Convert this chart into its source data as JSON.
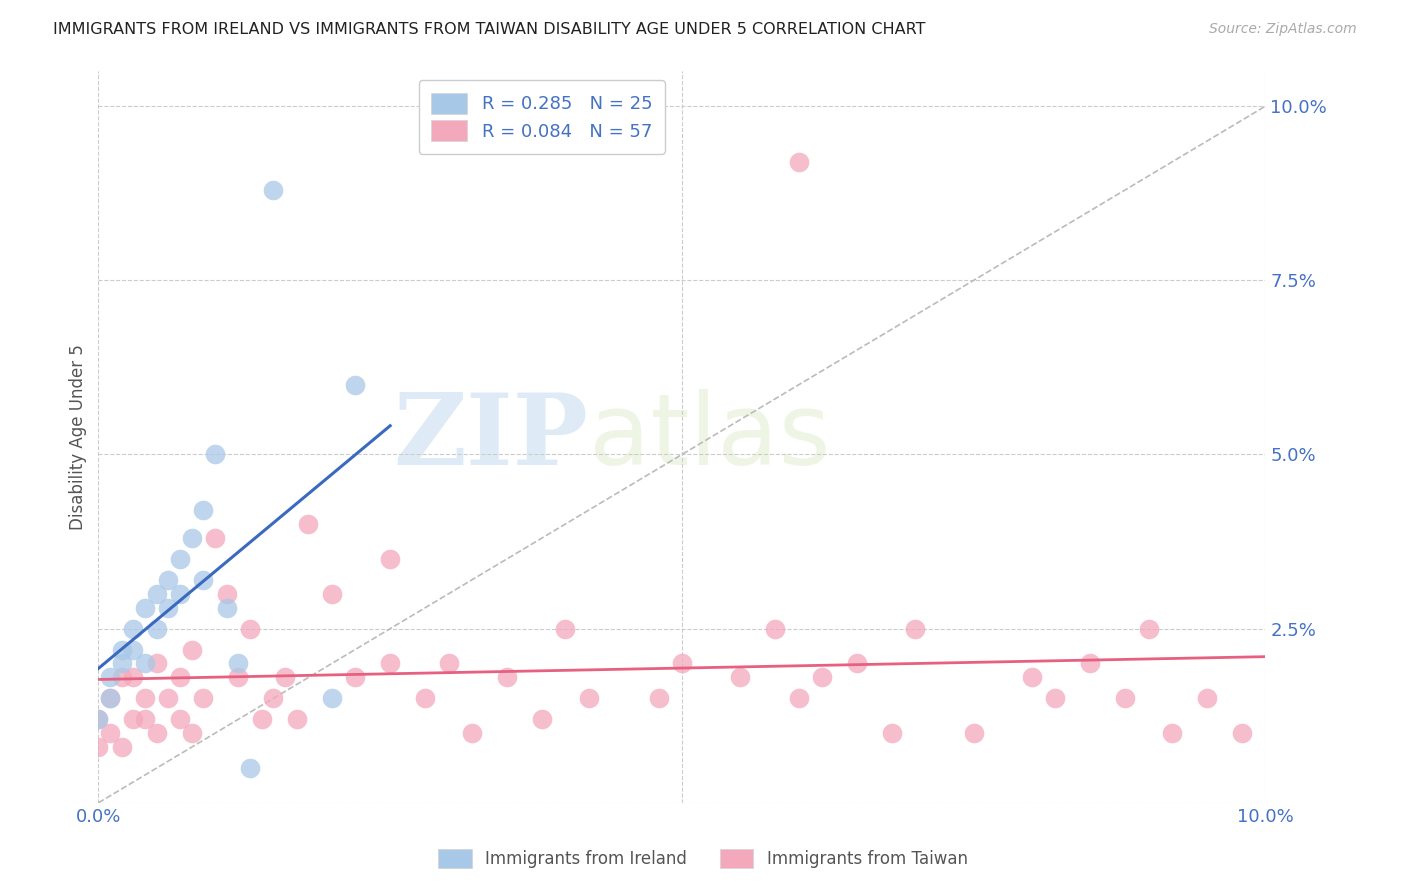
{
  "title": "IMMIGRANTS FROM IRELAND VS IMMIGRANTS FROM TAIWAN DISABILITY AGE UNDER 5 CORRELATION CHART",
  "source": "Source: ZipAtlas.com",
  "ylabel": "Disability Age Under 5",
  "xlim": [
    0.0,
    0.1
  ],
  "ylim": [
    0.0,
    0.105
  ],
  "yticks": [
    0.0,
    0.025,
    0.05,
    0.075,
    0.1
  ],
  "ytick_labels": [
    "",
    "2.5%",
    "5.0%",
    "7.5%",
    "10.0%"
  ],
  "xtick_labels": [
    "0.0%",
    "",
    "",
    "",
    "10.0%"
  ],
  "ireland_R": 0.285,
  "ireland_N": 25,
  "taiwan_R": 0.084,
  "taiwan_N": 57,
  "ireland_color": "#a8c8e8",
  "taiwan_color": "#f4a8bc",
  "ireland_line_color": "#3a6abf",
  "taiwan_line_color": "#e86080",
  "diag_line_color": "#bbbbbb",
  "background_color": "#ffffff",
  "watermark_zip": "ZIP",
  "watermark_atlas": "atlas",
  "ireland_x": [
    0.0,
    0.001,
    0.001,
    0.002,
    0.002,
    0.003,
    0.003,
    0.004,
    0.004,
    0.005,
    0.005,
    0.006,
    0.006,
    0.007,
    0.007,
    0.008,
    0.009,
    0.009,
    0.01,
    0.011,
    0.012,
    0.013,
    0.015,
    0.02,
    0.022
  ],
  "ireland_y": [
    0.012,
    0.015,
    0.018,
    0.02,
    0.022,
    0.022,
    0.025,
    0.02,
    0.028,
    0.025,
    0.03,
    0.028,
    0.032,
    0.03,
    0.035,
    0.038,
    0.032,
    0.042,
    0.05,
    0.028,
    0.02,
    0.005,
    0.088,
    0.015,
    0.06
  ],
  "taiwan_x": [
    0.0,
    0.0,
    0.001,
    0.001,
    0.002,
    0.002,
    0.003,
    0.003,
    0.004,
    0.004,
    0.005,
    0.005,
    0.006,
    0.007,
    0.007,
    0.008,
    0.008,
    0.009,
    0.01,
    0.011,
    0.012,
    0.013,
    0.014,
    0.015,
    0.016,
    0.017,
    0.018,
    0.02,
    0.022,
    0.025,
    0.025,
    0.028,
    0.03,
    0.032,
    0.035,
    0.038,
    0.04,
    0.042,
    0.048,
    0.05,
    0.055,
    0.058,
    0.06,
    0.062,
    0.065,
    0.068,
    0.07,
    0.075,
    0.08,
    0.082,
    0.085,
    0.088,
    0.09,
    0.092,
    0.095,
    0.098,
    0.06
  ],
  "taiwan_y": [
    0.008,
    0.012,
    0.01,
    0.015,
    0.008,
    0.018,
    0.012,
    0.018,
    0.012,
    0.015,
    0.01,
    0.02,
    0.015,
    0.012,
    0.018,
    0.01,
    0.022,
    0.015,
    0.038,
    0.03,
    0.018,
    0.025,
    0.012,
    0.015,
    0.018,
    0.012,
    0.04,
    0.03,
    0.018,
    0.02,
    0.035,
    0.015,
    0.02,
    0.01,
    0.018,
    0.012,
    0.025,
    0.015,
    0.015,
    0.02,
    0.018,
    0.025,
    0.015,
    0.018,
    0.02,
    0.01,
    0.025,
    0.01,
    0.018,
    0.015,
    0.02,
    0.015,
    0.025,
    0.01,
    0.015,
    0.01,
    0.092
  ]
}
